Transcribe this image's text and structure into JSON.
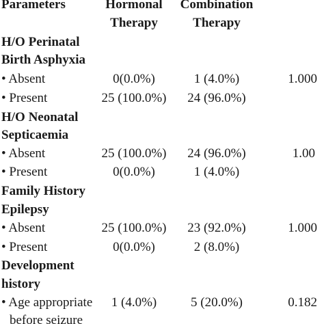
{
  "header": {
    "parameters": "Parameters",
    "hormonal_line1": "Hormonal",
    "hormonal_line2": "Therapy",
    "combination_line1": "Combination",
    "combination_line2": "Therapy"
  },
  "sections": [
    {
      "title_line1": "H/O Perinatal",
      "title_line2": "Birth Asphyxia",
      "rows": [
        {
          "label": "• Absent",
          "hormonal": "0(0.0%)",
          "combination": "1 (4.0%)",
          "p": "1.000"
        },
        {
          "label": "• Present",
          "hormonal": "25 (100.0%)",
          "combination": "24 (96.0%)",
          "p": ""
        }
      ]
    },
    {
      "title_line1": "H/O Neonatal",
      "title_line2": "Septicaemia",
      "rows": [
        {
          "label": "• Absent",
          "hormonal": "25 (100.0%)",
          "combination": "24 (96.0%)",
          "p": "1.00"
        },
        {
          "label": "• Present",
          "hormonal": "0(0.0%)",
          "combination": "1 (4.0%)",
          "p": ""
        }
      ]
    },
    {
      "title_line1": "Family History",
      "title_line2": "Epilepsy",
      "rows": [
        {
          "label": "• Absent",
          "hormonal": "25 (100.0%)",
          "combination": "23 (92.0%)",
          "p": "1.000"
        },
        {
          "label": "• Present",
          "hormonal": "0(0.0%)",
          "combination": "2 (8.0%)",
          "p": ""
        }
      ]
    },
    {
      "title_line1": "Development",
      "title_line2": "history",
      "rows": [
        {
          "label": "• Age appropriate",
          "label_line2": "before seizure",
          "hormonal": "1 (4.0%)",
          "combination": "5 (20.0%)",
          "p": "0.182"
        }
      ]
    }
  ]
}
